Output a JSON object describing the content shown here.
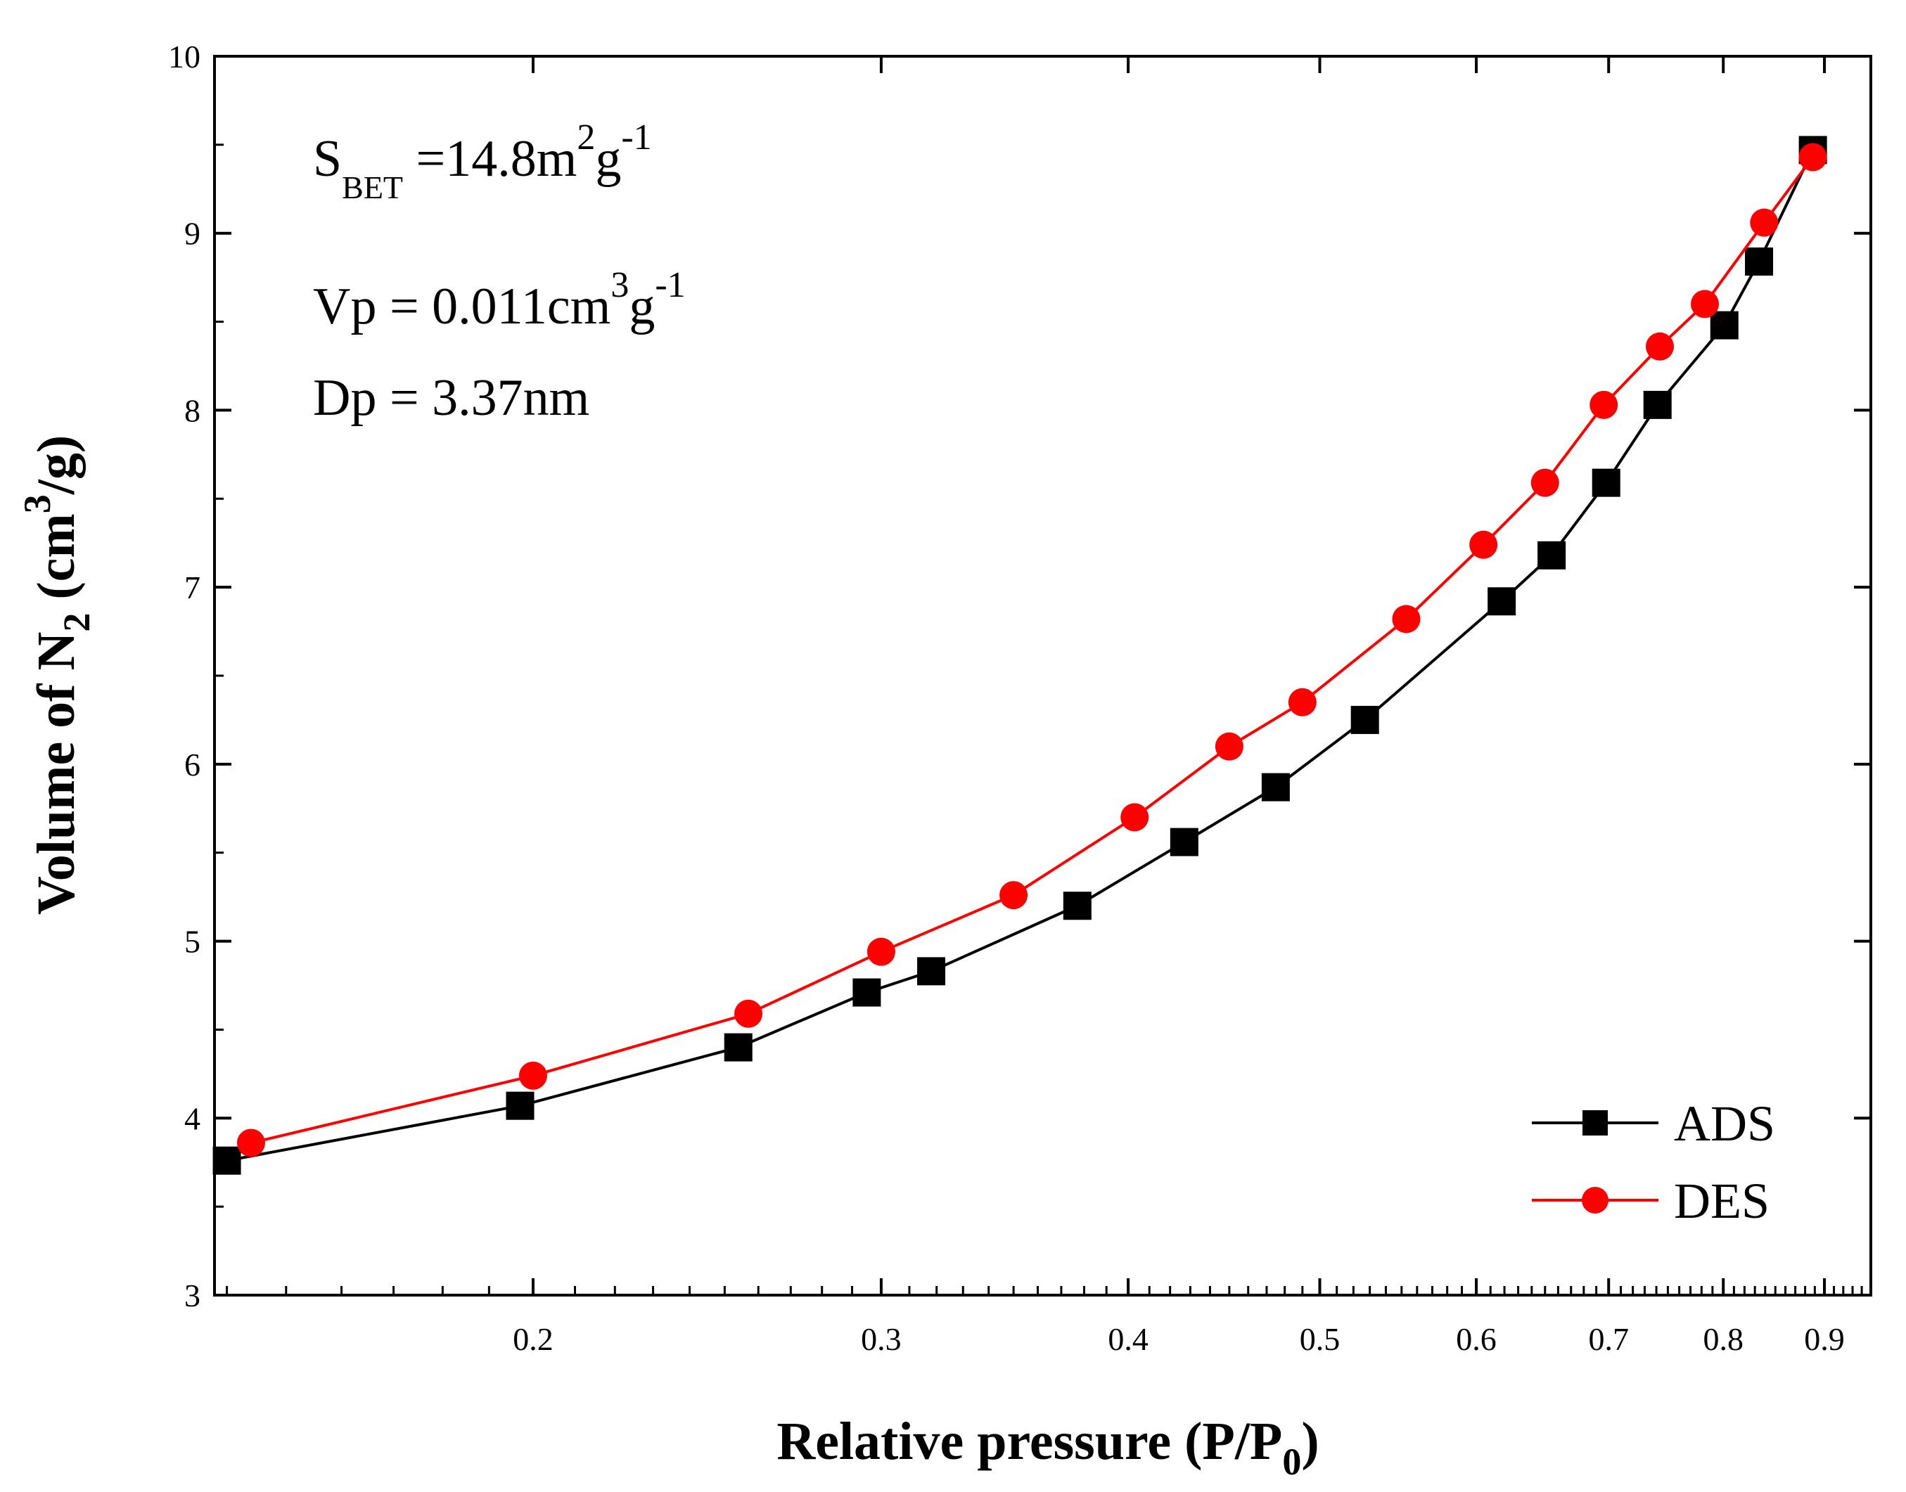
{
  "chart_data": {
    "type": "line",
    "xscale": "log",
    "xlabel": "Relative pressure (P/P",
    "xlabel_sub": "0",
    "xlabel_close": ")",
    "ylabel": "Volume of N",
    "ylabel_sub": "2",
    "ylabel_mid": " (cm",
    "ylabel_sup": "3",
    "ylabel_end": "/g)",
    "xlim": [
      0.138,
      0.95
    ],
    "ylim": [
      3,
      10
    ],
    "xticks": [
      0.2,
      0.3,
      0.4,
      0.5,
      0.6,
      0.7,
      0.8,
      0.9
    ],
    "xtick_labels": [
      "0.2",
      "0.3",
      "0.4",
      "0.5",
      "0.6",
      "0.7",
      "0.8",
      "0.9"
    ],
    "yticks": [
      3,
      4,
      5,
      6,
      7,
      8,
      9,
      10
    ],
    "ytick_labels": [
      "3",
      "4",
      "5",
      "6",
      "7",
      "8",
      "9",
      "10"
    ],
    "annotations": {
      "sbet": {
        "sym": "S",
        "sub": "BET",
        "eq": " =14.8m",
        "sup1": "2",
        "mid": "g",
        "sup2": "-1"
      },
      "vp": {
        "pre": "Vp = 0.011cm",
        "sup1": "3",
        "mid": "g",
        "sup2": "-1"
      },
      "dp": {
        "text": "Dp = 3.37nm"
      }
    },
    "legend_position": "bottom-right",
    "series": [
      {
        "name": "ADS",
        "color": "#000000",
        "marker": "square",
        "x": [
          0.14,
          0.197,
          0.254,
          0.295,
          0.318,
          0.377,
          0.427,
          0.475,
          0.527,
          0.618,
          0.655,
          0.698,
          0.741,
          0.801,
          0.834,
          0.888
        ],
        "y": [
          3.76,
          4.07,
          4.4,
          4.71,
          4.83,
          5.2,
          5.56,
          5.87,
          6.25,
          6.92,
          7.18,
          7.59,
          8.03,
          8.48,
          8.84,
          9.47
        ]
      },
      {
        "name": "DES",
        "color": "#ff0000",
        "marker": "circle",
        "x": [
          0.144,
          0.2,
          0.257,
          0.3,
          0.35,
          0.403,
          0.45,
          0.49,
          0.553,
          0.605,
          0.65,
          0.696,
          0.743,
          0.783,
          0.839,
          0.888
        ],
        "y": [
          3.86,
          4.24,
          4.59,
          4.94,
          5.26,
          5.7,
          6.1,
          6.35,
          6.82,
          7.24,
          7.59,
          8.03,
          8.36,
          8.6,
          9.06,
          9.43
        ]
      }
    ]
  }
}
